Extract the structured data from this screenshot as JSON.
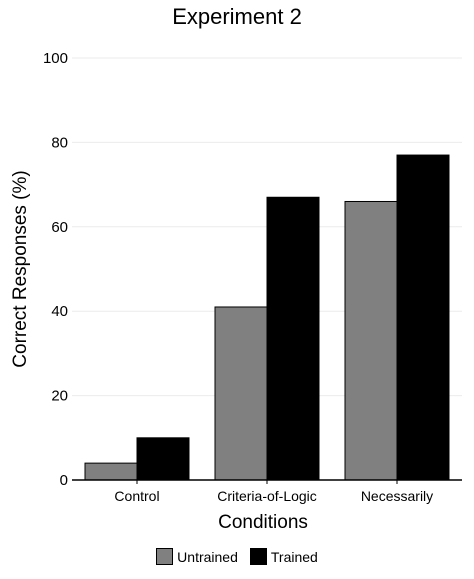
{
  "chart_data": {
    "type": "bar",
    "title": "Experiment 2",
    "xlabel": "Conditions",
    "ylabel": "Correct Responses (%)",
    "categories": [
      "Control",
      "Criteria-of-Logic",
      "Necessarily"
    ],
    "series": [
      {
        "name": "Untrained",
        "color": "#808080",
        "values": [
          4,
          41,
          66
        ]
      },
      {
        "name": "Trained",
        "color": "#000000",
        "values": [
          10,
          67,
          77
        ]
      }
    ],
    "ylim": [
      0,
      100
    ],
    "yticks": [
      "0",
      "20",
      "40",
      "60",
      "80",
      "100"
    ],
    "grid": true,
    "legend_position": "bottom"
  }
}
